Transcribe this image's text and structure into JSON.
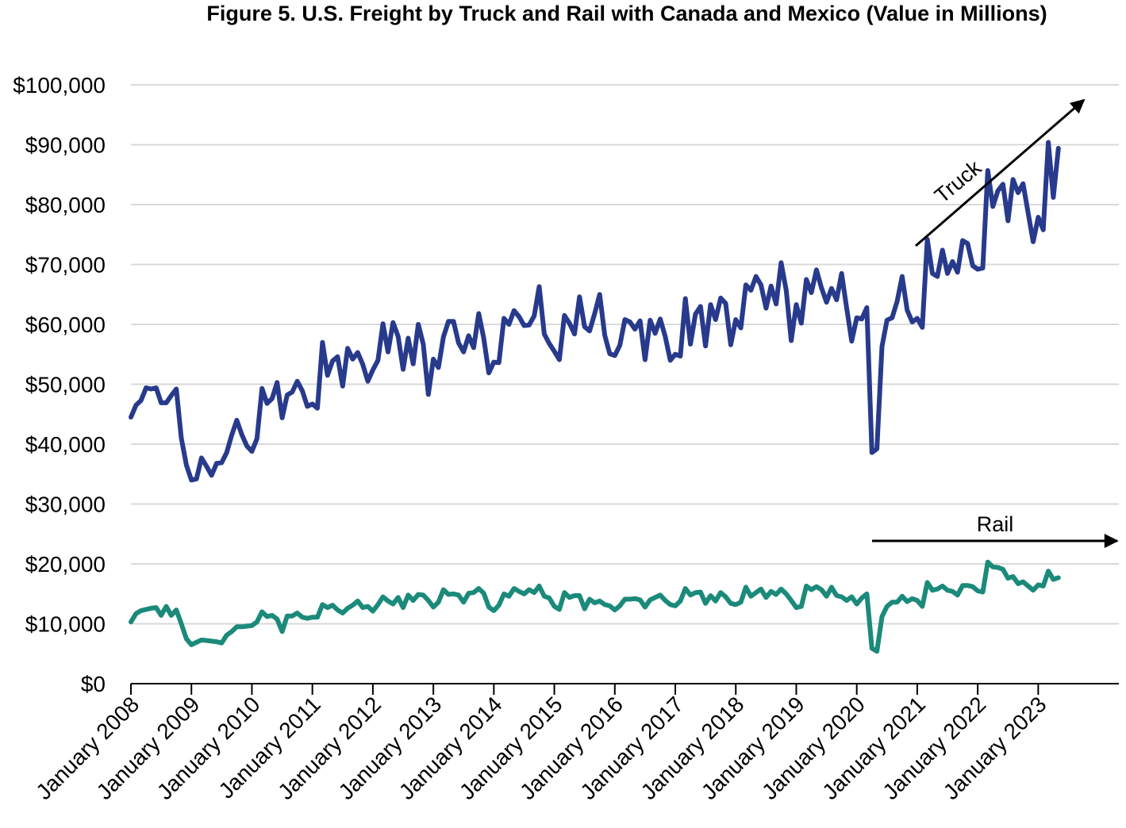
{
  "chart_data": {
    "type": "line",
    "title": "Figure 5. U.S. Freight by Truck and Rail with Canada and Mexico (Value in Millions)",
    "xlabel": "",
    "ylabel": "",
    "ylim": [
      0,
      100000
    ],
    "y_ticks": [
      "$0",
      "$10,000",
      "$20,000",
      "$30,000",
      "$40,000",
      "$50,000",
      "$60,000",
      "$70,000",
      "$80,000",
      "$90,000",
      "$100,000"
    ],
    "x_ticks": [
      "January 2008",
      "January 2009",
      "January 2010",
      "January 2011",
      "January 2012",
      "January 2013",
      "January 2014",
      "January 2015",
      "January 2016",
      "January 2017",
      "January 2018",
      "January 2019",
      "January 2020",
      "January 2021",
      "January 2022",
      "January 2023"
    ],
    "x_start": "2008-01",
    "frequency": "monthly",
    "grid": true,
    "legend": "none",
    "annotations": [
      {
        "text": "Truck",
        "series": "Truck"
      },
      {
        "text": "Rail",
        "series": "Rail"
      }
    ],
    "series": [
      {
        "name": "Truck",
        "color": "#283A8C",
        "values": [
          44500,
          46500,
          47300,
          49400,
          49200,
          49400,
          46900,
          46900,
          48100,
          49200,
          41000,
          36500,
          34000,
          34200,
          37700,
          36300,
          34800,
          36800,
          36900,
          38600,
          41500,
          44000,
          41600,
          39700,
          38800,
          40900,
          49300,
          46800,
          47600,
          50300,
          44400,
          48200,
          48700,
          50500,
          48900,
          46300,
          46700,
          46000,
          57000,
          51500,
          53900,
          54600,
          49700,
          56000,
          54200,
          55300,
          53300,
          50500,
          52400,
          54000,
          60100,
          55400,
          60300,
          58000,
          52500,
          57700,
          53400,
          60000,
          56700,
          48300,
          54200,
          52800,
          57900,
          60500,
          60500,
          56900,
          55400,
          58100,
          56100,
          61800,
          57700,
          51900,
          53700,
          53600,
          61000,
          60000,
          62300,
          61300,
          59800,
          59900,
          61400,
          66300,
          58400,
          56800,
          55500,
          54100,
          61500,
          60200,
          58400,
          64600,
          59600,
          58900,
          61800,
          65000,
          58200,
          55100,
          54800,
          56500,
          60800,
          60400,
          59200,
          60600,
          54100,
          60700,
          58500,
          60900,
          58000,
          54000,
          55000,
          54700,
          64300,
          56700,
          61700,
          63000,
          56400,
          63300,
          60800,
          64400,
          63500,
          56600,
          60800,
          59400,
          66600,
          65700,
          68000,
          66600,
          62700,
          66400,
          63400,
          70300,
          65700,
          57300,
          63300,
          60200,
          67500,
          65300,
          69100,
          66100,
          63700,
          66000,
          64100,
          68500,
          62700,
          57200,
          61100,
          60900,
          62800,
          38600,
          39200,
          56300,
          60700,
          61100,
          63800,
          68000,
          62400,
          60400,
          61000,
          59500,
          74200,
          68500,
          68000,
          72400,
          68500,
          70500,
          68700,
          74000,
          73500,
          69800,
          69200,
          69400,
          85700,
          79700,
          82300,
          83400,
          77300,
          84200,
          82000,
          83500,
          78600,
          73800,
          77900,
          75800,
          90400,
          81200,
          89400
        ]
      },
      {
        "name": "Rail",
        "color": "#1B8A7A",
        "values": [
          10300,
          11700,
          12200,
          12400,
          12600,
          12700,
          11400,
          12900,
          11400,
          12300,
          10000,
          7500,
          6500,
          6900,
          7300,
          7200,
          7100,
          7000,
          6800,
          8100,
          8700,
          9500,
          9500,
          9600,
          9700,
          10300,
          12000,
          11200,
          11400,
          10800,
          8700,
          11300,
          11300,
          11800,
          11100,
          10900,
          11100,
          11100,
          13200,
          12700,
          13100,
          12300,
          11800,
          12600,
          13100,
          13800,
          12700,
          12900,
          12100,
          13200,
          14500,
          13800,
          13300,
          14400,
          12700,
          14800,
          13900,
          14900,
          14800,
          13900,
          12800,
          13600,
          15700,
          14900,
          15000,
          14800,
          13600,
          15100,
          15200,
          15900,
          15100,
          12800,
          12200,
          13100,
          15000,
          14600,
          15900,
          15400,
          15000,
          15700,
          15200,
          16300,
          14600,
          14300,
          12900,
          12400,
          15200,
          14400,
          14700,
          14700,
          12500,
          14100,
          13500,
          13800,
          13200,
          13000,
          12300,
          13000,
          14100,
          14100,
          14200,
          14000,
          12800,
          14000,
          14400,
          14800,
          13900,
          13200,
          13000,
          13800,
          15900,
          14800,
          15200,
          15300,
          13400,
          14700,
          13800,
          15200,
          14500,
          13400,
          13200,
          13600,
          16100,
          14600,
          15200,
          15800,
          14400,
          15400,
          14900,
          15800,
          15000,
          13900,
          12700,
          12900,
          16300,
          15700,
          16200,
          15700,
          14600,
          16100,
          14700,
          14500,
          13900,
          14500,
          13300,
          14300,
          15000,
          5900,
          5400,
          11200,
          12900,
          13600,
          13600,
          14600,
          13700,
          14200,
          13900,
          12900,
          16900,
          15600,
          15800,
          16300,
          15600,
          15400,
          14800,
          16400,
          16400,
          16200,
          15500,
          15300,
          20300,
          19500,
          19400,
          19100,
          17600,
          17900,
          16700,
          17000,
          16300,
          15600,
          16500,
          16300,
          18800,
          17400,
          17700
        ]
      }
    ]
  }
}
